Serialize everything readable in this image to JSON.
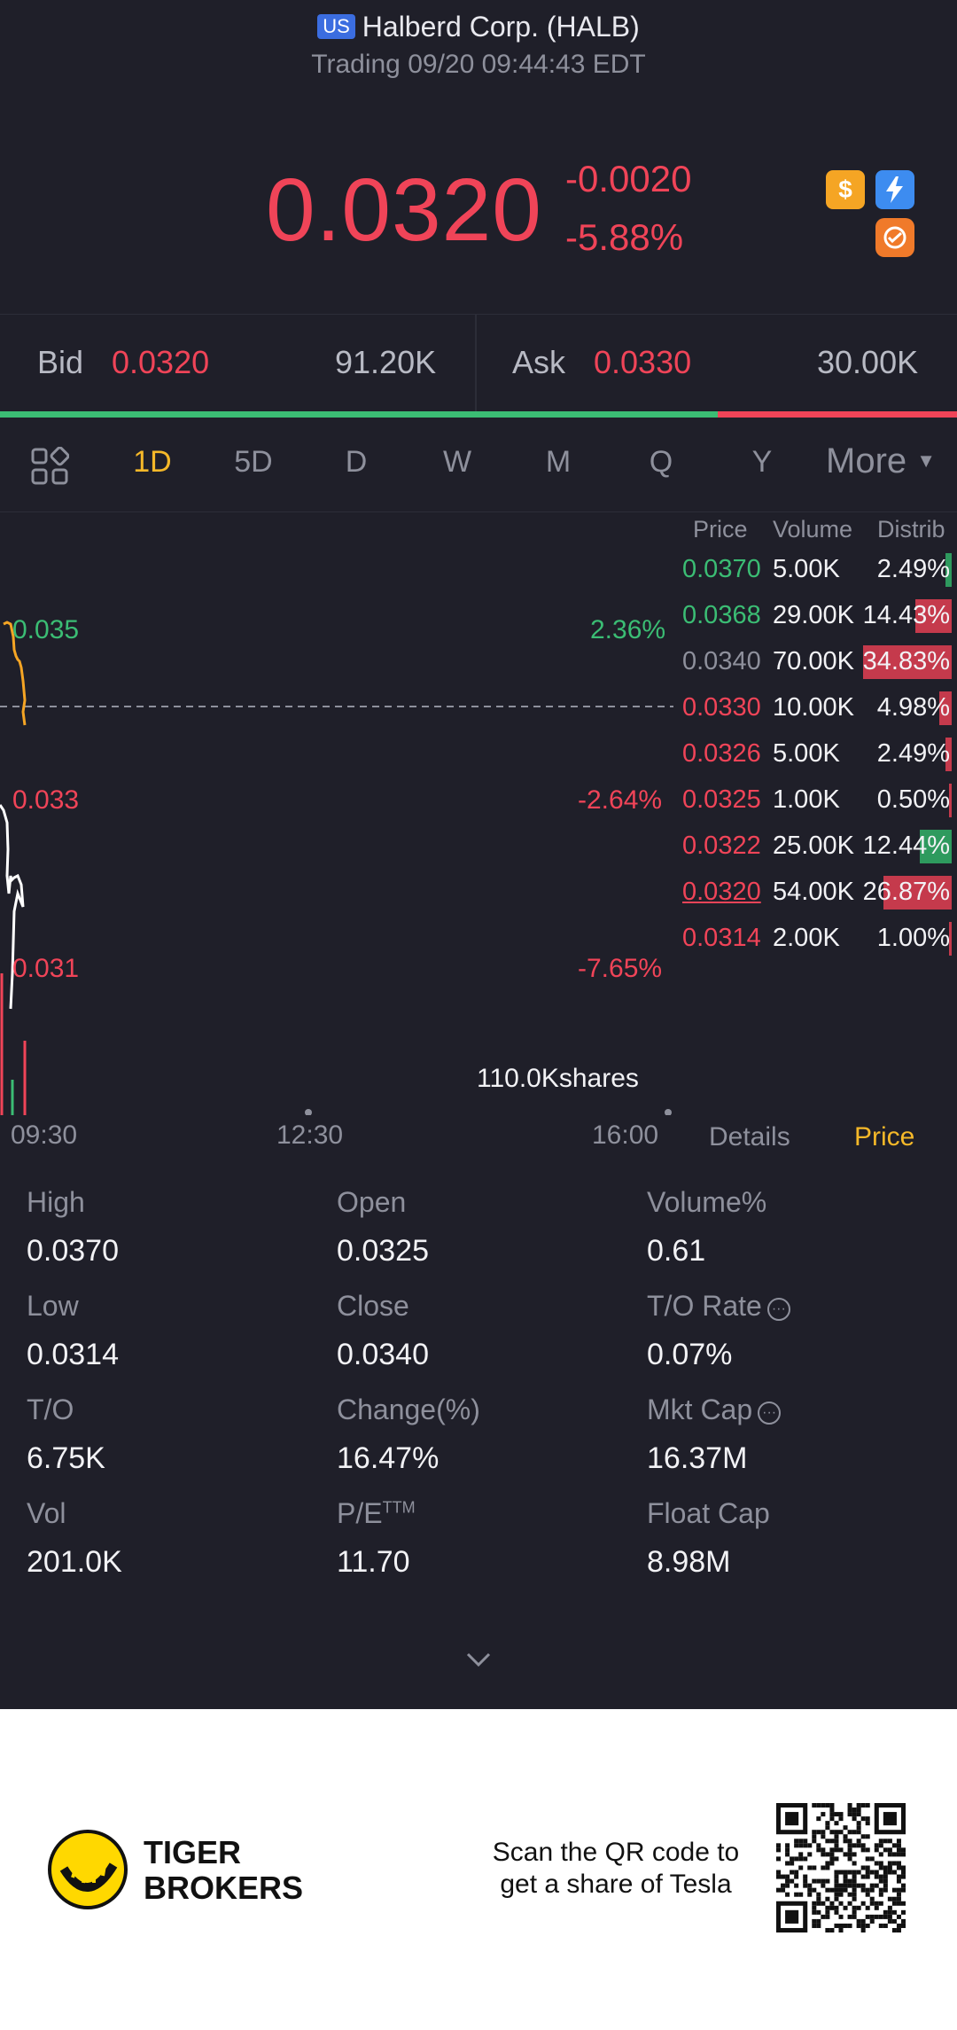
{
  "header": {
    "market_badge": "US",
    "title": "Halberd Corp. (HALB)",
    "status": "Trading 09/20 09:44:43 EDT"
  },
  "quote": {
    "last_price": "0.0320",
    "change": "-0.0020",
    "change_pct": "-5.88%",
    "badge_icons": [
      "dollar-icon",
      "flash-icon",
      "option-icon"
    ]
  },
  "bid_ask": {
    "bid_label": "Bid",
    "bid_price": "0.0320",
    "bid_size": "91.20K",
    "ask_label": "Ask",
    "ask_price": "0.0330",
    "ask_size": "30.00K",
    "bid_share": 0.75
  },
  "tabs": {
    "items": [
      "1D",
      "5D",
      "D",
      "W",
      "M",
      "Q",
      "Y"
    ],
    "active": "1D",
    "more_label": "More"
  },
  "chart": {
    "price_labels": [
      "0.035",
      "0.033",
      "0.031"
    ],
    "pct_labels": [
      "2.36%",
      "-2.64%",
      "-7.65%"
    ],
    "time_labels": [
      "09:30",
      "12:30",
      "16:00"
    ],
    "volume_label": "110.0Kshares",
    "bottom_tabs": [
      "Details",
      "Price"
    ],
    "active_bottom_tab": "Price"
  },
  "distribution": {
    "headers": [
      "Price",
      "Volume",
      "Distrib"
    ],
    "rows": [
      {
        "price": "0.0370",
        "volume": "5.00K",
        "pct": "2.49%",
        "share": 0.0249,
        "side": "buy",
        "price_color": "green"
      },
      {
        "price": "0.0368",
        "volume": "29.00K",
        "pct": "14.43%",
        "share": 0.1443,
        "side": "sell",
        "price_color": "green"
      },
      {
        "price": "0.0340",
        "volume": "70.00K",
        "pct": "34.83%",
        "share": 0.3483,
        "side": "sell",
        "price_color": "gray"
      },
      {
        "price": "0.0330",
        "volume": "10.00K",
        "pct": "4.98%",
        "share": 0.0498,
        "side": "sell",
        "price_color": "red"
      },
      {
        "price": "0.0326",
        "volume": "5.00K",
        "pct": "2.49%",
        "share": 0.0249,
        "side": "sell",
        "price_color": "red"
      },
      {
        "price": "0.0325",
        "volume": "1.00K",
        "pct": "0.50%",
        "share": 0.005,
        "side": "sell",
        "price_color": "red"
      },
      {
        "price": "0.0322",
        "volume": "25.00K",
        "pct": "12.44%",
        "share": 0.1244,
        "side": "buy",
        "price_color": "red"
      },
      {
        "price": "0.0320",
        "volume": "54.00K",
        "pct": "26.87%",
        "share": 0.2687,
        "side": "sell",
        "price_color": "red"
      },
      {
        "price": "0.0314",
        "volume": "2.00K",
        "pct": "1.00%",
        "share": 0.01,
        "side": "sell",
        "price_color": "red"
      }
    ]
  },
  "stats": [
    {
      "label": "High",
      "value": "0.0370"
    },
    {
      "label": "Open",
      "value": "0.0325"
    },
    {
      "label": "Volume%",
      "value": "0.61"
    },
    {
      "label": "Low",
      "value": "0.0314"
    },
    {
      "label": "Close",
      "value": "0.0340"
    },
    {
      "label": "T/O Rate",
      "value": "0.07%"
    },
    {
      "label": "T/O",
      "value": "6.75K"
    },
    {
      "label": "Change(%)",
      "value": "16.47%"
    },
    {
      "label": "Mkt Cap",
      "value": "16.37M"
    },
    {
      "label": "Vol",
      "value": "201.0K"
    },
    {
      "label": "P/E",
      "label_sup": "TTM",
      "value": "11.70"
    },
    {
      "label": "Float Cap",
      "value": "8.98M"
    }
  ],
  "footer": {
    "brand_line1": "TIGER",
    "brand_line2": "BROKERS",
    "promo_line1": "Scan the QR code to",
    "promo_line2": "get a share of Tesla"
  },
  "colors": {
    "up": "#3bbd74",
    "down": "#f04458",
    "accent": "#f5b829",
    "background": "#1f1f29"
  }
}
